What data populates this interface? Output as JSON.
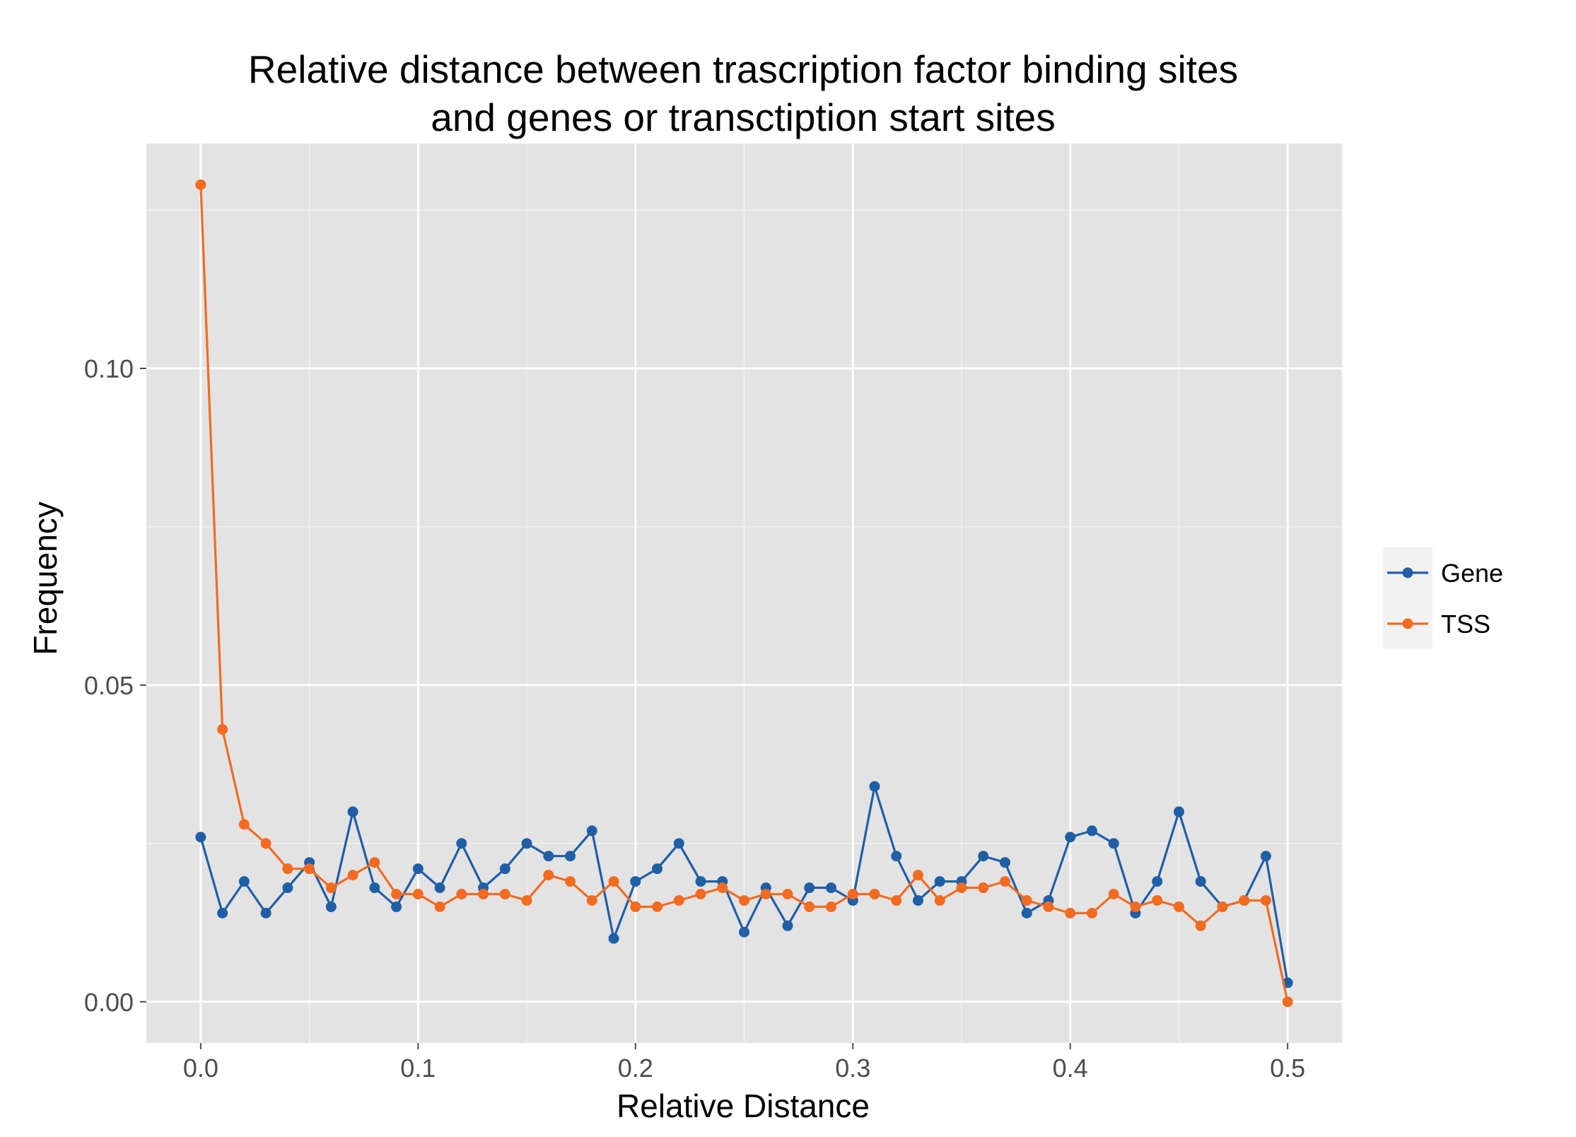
{
  "chart_data": {
    "type": "line",
    "title_line1": "Relative distance between trascription factor binding sites",
    "title_line2": "and genes or transctiption start sites",
    "xlabel": "Relative Distance",
    "ylabel": "Frequency",
    "xlim": [
      -0.025,
      0.525
    ],
    "ylim": [
      -0.0065,
      0.1355
    ],
    "x_ticks": [
      0.0,
      0.1,
      0.2,
      0.3,
      0.4,
      0.5
    ],
    "x_tick_labels": [
      "0.0",
      "0.1",
      "0.2",
      "0.3",
      "0.4",
      "0.5"
    ],
    "y_ticks": [
      0.0,
      0.05,
      0.1
    ],
    "y_tick_labels": [
      "0.00",
      "0.05",
      "0.10"
    ],
    "grid": true,
    "legend_position": "right",
    "x": [
      0.0,
      0.01,
      0.02,
      0.03,
      0.04,
      0.05,
      0.06,
      0.07,
      0.08,
      0.09,
      0.1,
      0.11,
      0.12,
      0.13,
      0.14,
      0.15,
      0.16,
      0.17,
      0.18,
      0.19,
      0.2,
      0.21,
      0.22,
      0.23,
      0.24,
      0.25,
      0.26,
      0.27,
      0.28,
      0.29,
      0.3,
      0.31,
      0.32,
      0.33,
      0.34,
      0.35,
      0.36,
      0.37,
      0.38,
      0.39,
      0.4,
      0.41,
      0.42,
      0.43,
      0.44,
      0.45,
      0.46,
      0.47,
      0.48,
      0.49,
      0.5
    ],
    "series": [
      {
        "name": "Gene",
        "color": "#1f5fa6",
        "values": [
          0.026,
          0.014,
          0.019,
          0.014,
          0.018,
          0.022,
          0.015,
          0.03,
          0.018,
          0.015,
          0.021,
          0.018,
          0.025,
          0.018,
          0.021,
          0.025,
          0.023,
          0.023,
          0.027,
          0.01,
          0.019,
          0.021,
          0.025,
          0.019,
          0.019,
          0.011,
          0.018,
          0.012,
          0.018,
          0.018,
          0.016,
          0.034,
          0.023,
          0.016,
          0.019,
          0.019,
          0.023,
          0.022,
          0.014,
          0.016,
          0.026,
          0.027,
          0.025,
          0.014,
          0.019,
          0.03,
          0.019,
          0.015,
          0.016,
          0.023,
          0.003
        ]
      },
      {
        "name": "TSS",
        "color": "#f26b21",
        "values": [
          0.129,
          0.043,
          0.028,
          0.025,
          0.021,
          0.021,
          0.018,
          0.02,
          0.022,
          0.017,
          0.017,
          0.015,
          0.017,
          0.017,
          0.017,
          0.016,
          0.02,
          0.019,
          0.016,
          0.019,
          0.015,
          0.015,
          0.016,
          0.017,
          0.018,
          0.016,
          0.017,
          0.017,
          0.015,
          0.015,
          0.017,
          0.017,
          0.016,
          0.02,
          0.016,
          0.018,
          0.018,
          0.019,
          0.016,
          0.015,
          0.014,
          0.014,
          0.017,
          0.015,
          0.016,
          0.015,
          0.012,
          0.015,
          0.016,
          0.016,
          0.0
        ]
      }
    ]
  }
}
